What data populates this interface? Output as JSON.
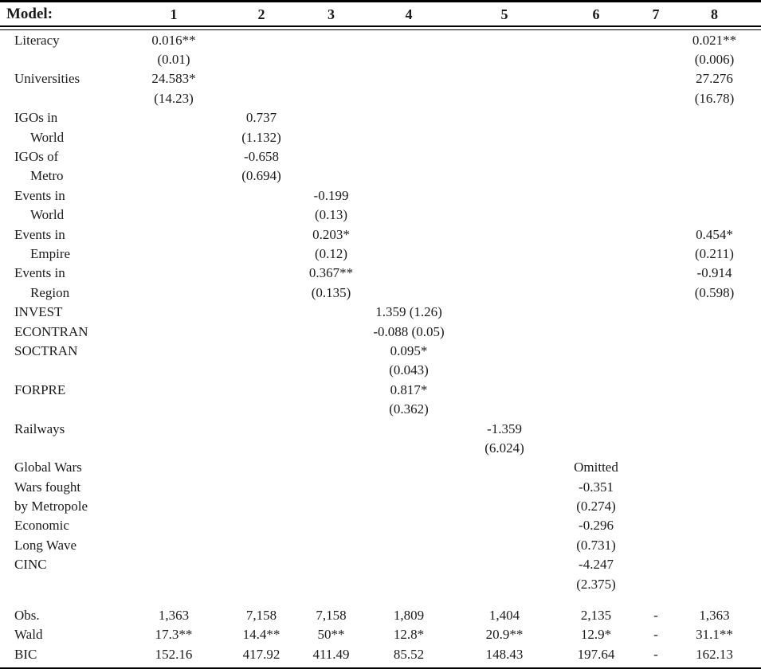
{
  "page": {
    "background": "#ffffff",
    "text_color": "#1b1b1b",
    "rule_color": "#000000"
  },
  "table": {
    "header": {
      "label": "Model:",
      "columns": [
        "1",
        "2",
        "3",
        "4",
        "5",
        "6",
        "7",
        "8"
      ]
    },
    "rows": [
      {
        "label": "Literacy",
        "indent": false,
        "cells": [
          "0.016**",
          "",
          "",
          "",
          "",
          "",
          "",
          "0.021**"
        ]
      },
      {
        "label": "",
        "indent": false,
        "cells": [
          "(0.01)",
          "",
          "",
          "",
          "",
          "",
          "",
          "(0.006)"
        ]
      },
      {
        "label": "Universities",
        "indent": false,
        "cells": [
          "24.583*",
          "",
          "",
          "",
          "",
          "",
          "",
          "27.276"
        ]
      },
      {
        "label": "",
        "indent": false,
        "cells": [
          "(14.23)",
          "",
          "",
          "",
          "",
          "",
          "",
          "(16.78)"
        ]
      },
      {
        "label": "IGOs in",
        "indent": false,
        "cells": [
          "",
          "0.737",
          "",
          "",
          "",
          "",
          "",
          ""
        ]
      },
      {
        "label": "World",
        "indent": true,
        "cells": [
          "",
          "(1.132)",
          "",
          "",
          "",
          "",
          "",
          ""
        ]
      },
      {
        "label": "IGOs of",
        "indent": false,
        "cells": [
          "",
          "-0.658",
          "",
          "",
          "",
          "",
          "",
          ""
        ]
      },
      {
        "label": "Metro",
        "indent": true,
        "cells": [
          "",
          "(0.694)",
          "",
          "",
          "",
          "",
          "",
          ""
        ]
      },
      {
        "label": "Events in",
        "indent": false,
        "cells": [
          "",
          "",
          "-0.199",
          "",
          "",
          "",
          "",
          ""
        ]
      },
      {
        "label": "World",
        "indent": true,
        "cells": [
          "",
          "",
          "(0.13)",
          "",
          "",
          "",
          "",
          ""
        ]
      },
      {
        "label": "Events in",
        "indent": false,
        "cells": [
          "",
          "",
          "0.203*",
          "",
          "",
          "",
          "",
          "0.454*"
        ]
      },
      {
        "label": "Empire",
        "indent": true,
        "cells": [
          "",
          "",
          "(0.12)",
          "",
          "",
          "",
          "",
          "(0.211)"
        ]
      },
      {
        "label": "Events in",
        "indent": false,
        "cells": [
          "",
          "",
          "0.367**",
          "",
          "",
          "",
          "",
          "-0.914"
        ]
      },
      {
        "label": "Region",
        "indent": true,
        "cells": [
          "",
          "",
          "(0.135)",
          "",
          "",
          "",
          "",
          "(0.598)"
        ]
      },
      {
        "label": "INVEST",
        "indent": false,
        "cells": [
          "",
          "",
          "",
          "1.359 (1.26)",
          "",
          "",
          "",
          ""
        ]
      },
      {
        "label": "ECONTRAN",
        "indent": false,
        "cells": [
          "",
          "",
          "",
          "-0.088 (0.05)",
          "",
          "",
          "",
          ""
        ]
      },
      {
        "label": "SOCTRAN",
        "indent": false,
        "cells": [
          "",
          "",
          "",
          "0.095*",
          "",
          "",
          "",
          ""
        ]
      },
      {
        "label": "",
        "indent": false,
        "cells": [
          "",
          "",
          "",
          "(0.043)",
          "",
          "",
          "",
          ""
        ]
      },
      {
        "label": "FORPRE",
        "indent": false,
        "cells": [
          "",
          "",
          "",
          "0.817*",
          "",
          "",
          "",
          ""
        ]
      },
      {
        "label": "",
        "indent": false,
        "cells": [
          "",
          "",
          "",
          "(0.362)",
          "",
          "",
          "",
          ""
        ]
      },
      {
        "label": "Railways",
        "indent": false,
        "cells": [
          "",
          "",
          "",
          "",
          "-1.359",
          "",
          "",
          ""
        ]
      },
      {
        "label": "",
        "indent": false,
        "cells": [
          "",
          "",
          "",
          "",
          "(6.024)",
          "",
          "",
          ""
        ]
      },
      {
        "label": "Global Wars",
        "indent": false,
        "cells": [
          "",
          "",
          "",
          "",
          "",
          "Omitted",
          "",
          ""
        ]
      },
      {
        "label": "Wars fought",
        "indent": false,
        "cells": [
          "",
          "",
          "",
          "",
          "",
          "-0.351",
          "",
          ""
        ]
      },
      {
        "label": "by Metropole",
        "indent": false,
        "cells": [
          "",
          "",
          "",
          "",
          "",
          "(0.274)",
          "",
          ""
        ]
      },
      {
        "label": "Economic",
        "indent": false,
        "cells": [
          "",
          "",
          "",
          "",
          "",
          "-0.296",
          "",
          ""
        ]
      },
      {
        "label": "Long Wave",
        "indent": false,
        "cells": [
          "",
          "",
          "",
          "",
          "",
          "(0.731)",
          "",
          ""
        ]
      },
      {
        "label": "CINC",
        "indent": false,
        "cells": [
          "",
          "",
          "",
          "",
          "",
          "-4.247",
          "",
          ""
        ]
      },
      {
        "label": "",
        "indent": false,
        "cells": [
          "",
          "",
          "",
          "",
          "",
          "(2.375)",
          "",
          ""
        ]
      }
    ],
    "stats": [
      {
        "label": "Obs.",
        "cells": [
          "1,363",
          "7,158",
          "7,158",
          "1,809",
          "1,404",
          "2,135",
          "-",
          "1,363"
        ]
      },
      {
        "label": "Wald",
        "cells": [
          "17.3**",
          "14.4**",
          "50**",
          "12.8*",
          "20.9**",
          "12.9*",
          "-",
          "31.1**"
        ]
      },
      {
        "label": "BIC",
        "cells": [
          "152.16",
          "417.92",
          "411.49",
          "85.52",
          "148.43",
          "197.64",
          "-",
          "162.13"
        ]
      }
    ]
  }
}
